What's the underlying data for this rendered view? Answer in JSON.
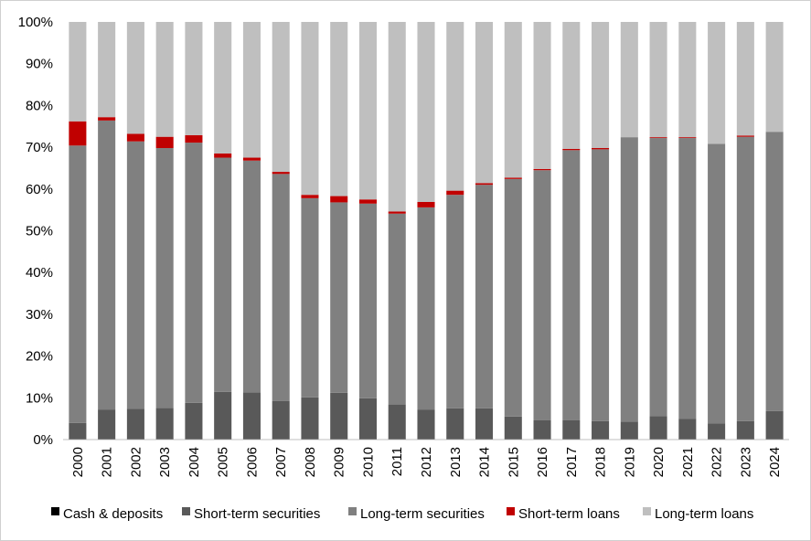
{
  "chart_data": {
    "type": "bar",
    "stacked": true,
    "title": "",
    "xlabel": "",
    "ylabel": "",
    "ylim": [
      0,
      100
    ],
    "y_ticks": [
      "0%",
      "10%",
      "20%",
      "30%",
      "40%",
      "50%",
      "60%",
      "70%",
      "80%",
      "90%",
      "100%"
    ],
    "grid": false,
    "legend_position": "bottom",
    "categories": [
      "2000",
      "2001",
      "2002",
      "2003",
      "2004",
      "2005",
      "2006",
      "2007",
      "2008",
      "2009",
      "2010",
      "2011",
      "2012",
      "2013",
      "2014",
      "2015",
      "2016",
      "2017",
      "2018",
      "2019",
      "2020",
      "2021",
      "2022",
      "2023",
      "2024"
    ],
    "series": [
      {
        "name": "Cash & deposits",
        "color": "#000000",
        "values": [
          0.2,
          0.2,
          0.2,
          0.2,
          0.2,
          0.2,
          0.2,
          0.2,
          0.2,
          0.2,
          0.2,
          0.2,
          0.2,
          0.2,
          0.2,
          0.2,
          0.2,
          0.2,
          0.2,
          0.2,
          0.2,
          0.2,
          0.2,
          0.2,
          0.2
        ]
      },
      {
        "name": "Short-term securities",
        "color": "#595959",
        "values": [
          3.8,
          7.0,
          7.2,
          7.4,
          8.6,
          11.2,
          11.1,
          9.0,
          9.9,
          11.0,
          9.7,
          8.2,
          7.0,
          7.3,
          7.3,
          5.3,
          4.4,
          4.4,
          4.2,
          4.1,
          5.4,
          4.8,
          3.7,
          4.2,
          6.6
        ]
      },
      {
        "name": "Long-term securities",
        "color": "#808080",
        "values": [
          66.4,
          69.2,
          64.0,
          62.2,
          62.3,
          56.1,
          55.5,
          54.4,
          47.7,
          45.6,
          46.6,
          45.7,
          48.4,
          51.1,
          53.5,
          56.9,
          59.9,
          64.7,
          65.1,
          68.1,
          66.6,
          67.2,
          66.9,
          68.1,
          66.9
        ]
      },
      {
        "name": "Short-term loans",
        "color": "#c00000",
        "values": [
          5.8,
          0.8,
          1.8,
          2.7,
          1.8,
          1.0,
          0.7,
          0.5,
          0.8,
          1.5,
          1.0,
          0.5,
          1.3,
          1.0,
          0.4,
          0.3,
          0.3,
          0.3,
          0.3,
          0.0,
          0.2,
          0.2,
          0.0,
          0.3,
          0.0
        ]
      },
      {
        "name": "Long-term loans",
        "color": "#bfbfbf",
        "values": [
          23.8,
          22.8,
          26.8,
          27.5,
          27.1,
          31.5,
          32.5,
          35.9,
          41.4,
          41.7,
          42.5,
          45.4,
          43.1,
          40.4,
          38.6,
          37.3,
          35.2,
          30.4,
          30.2,
          27.6,
          27.6,
          27.6,
          29.2,
          27.2,
          26.3
        ]
      }
    ]
  }
}
